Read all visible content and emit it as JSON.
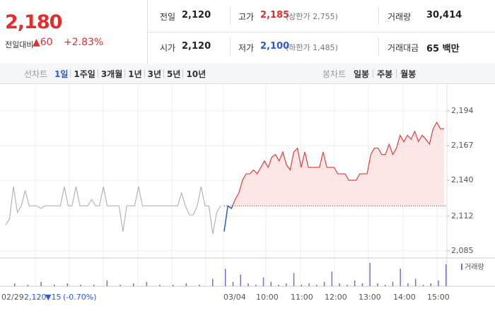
{
  "quote": {
    "price": "2,180",
    "change_label": "전일대비",
    "change": "▲60",
    "change_pct": "+2.83%"
  },
  "stats": [
    {
      "label": "전일",
      "value": "2,120"
    },
    {
      "label": "고가",
      "value": "2,185",
      "note": "(상한가 2,755)",
      "color": "#e52d2d"
    },
    {
      "label": "거래량",
      "value": "30,414"
    },
    {
      "label": "시가",
      "value": "2,120"
    },
    {
      "label": "저가",
      "value": "2,100",
      "note": "(하한가 1,485)",
      "color": "#2a5bd7"
    },
    {
      "label": "거래대금",
      "value": "65 백만"
    }
  ],
  "tabs": {
    "line_label": "선차트",
    "line_periods": [
      "1일",
      "1주일",
      "3개월",
      "1년",
      "3년",
      "5년",
      "10년"
    ],
    "active_index": 0,
    "candle_label": "봉차트",
    "candle_periods": [
      "일봉",
      "주봉",
      "월봉"
    ]
  },
  "chart_data": {
    "type": "line",
    "ylim": [
      2080,
      2200
    ],
    "yticks": [
      {
        "value": 2085,
        "label": "2,085"
      },
      {
        "value": 2112,
        "label": "2,112"
      },
      {
        "value": 2140,
        "label": "2,140"
      },
      {
        "value": 2167,
        "label": "2,167"
      },
      {
        "value": 2194,
        "label": "2,194"
      }
    ],
    "base": 2120,
    "color": "#e03c3c",
    "down_color": "#2a5bd7",
    "prev_color": "#b4b4b4",
    "fill": "#fde6e6",
    "prev_values": [
      2105,
      2110,
      2135,
      2115,
      2120,
      2132,
      2120,
      2120,
      2120,
      2118,
      2120,
      2120,
      2120,
      2120,
      2120,
      2135,
      2120,
      2120,
      2135,
      2120,
      2120,
      2120,
      2125,
      2120,
      2120,
      2135,
      2120,
      2120,
      2120,
      2120,
      2100,
      2120,
      2120,
      2120,
      2135,
      2120,
      2120,
      2120,
      2120,
      2120,
      2120,
      2120,
      2120,
      2120,
      2120,
      2130,
      2120,
      2113,
      2113,
      2120,
      2135,
      2120,
      2120,
      2098,
      2115,
      2120
    ],
    "values": [
      2100,
      2120,
      2118,
      2125,
      2130,
      2140,
      2145,
      2145,
      2148,
      2145,
      2150,
      2155,
      2150,
      2158,
      2160,
      2155,
      2162,
      2152,
      2148,
      2162,
      2165,
      2150,
      2162,
      2150,
      2150,
      2150,
      2150,
      2162,
      2150,
      2150,
      2150,
      2145,
      2145,
      2145,
      2140,
      2140,
      2140,
      2145,
      2145,
      2145,
      2160,
      2165,
      2165,
      2160,
      2160,
      2168,
      2160,
      2165,
      2175,
      2170,
      2175,
      2172,
      2178,
      2170,
      2175,
      2172,
      2168,
      2180,
      2185,
      2180,
      2180
    ],
    "volume": {
      "name": "거래량",
      "color": "#7b6fc4",
      "prev_values": [
        2,
        1,
        3,
        1,
        2,
        1,
        1,
        4,
        1,
        2,
        3,
        1,
        1,
        2,
        1,
        5
      ],
      "values": [
        12,
        3,
        8,
        2,
        1,
        6,
        3,
        1,
        2,
        9,
        1,
        2,
        1,
        3,
        10,
        2,
        1,
        4,
        2,
        16,
        2,
        1,
        3,
        12,
        2,
        5,
        1,
        2,
        4,
        15
      ]
    },
    "xticks": [
      "02/29",
      "03/04",
      "10:00",
      "11:00",
      "12:00",
      "13:00",
      "14:00",
      "15:00"
    ],
    "footer": {
      "date": "02/29",
      "close": "2,120",
      "change": "▼15",
      "change_pct": "(-0.70%)"
    }
  }
}
